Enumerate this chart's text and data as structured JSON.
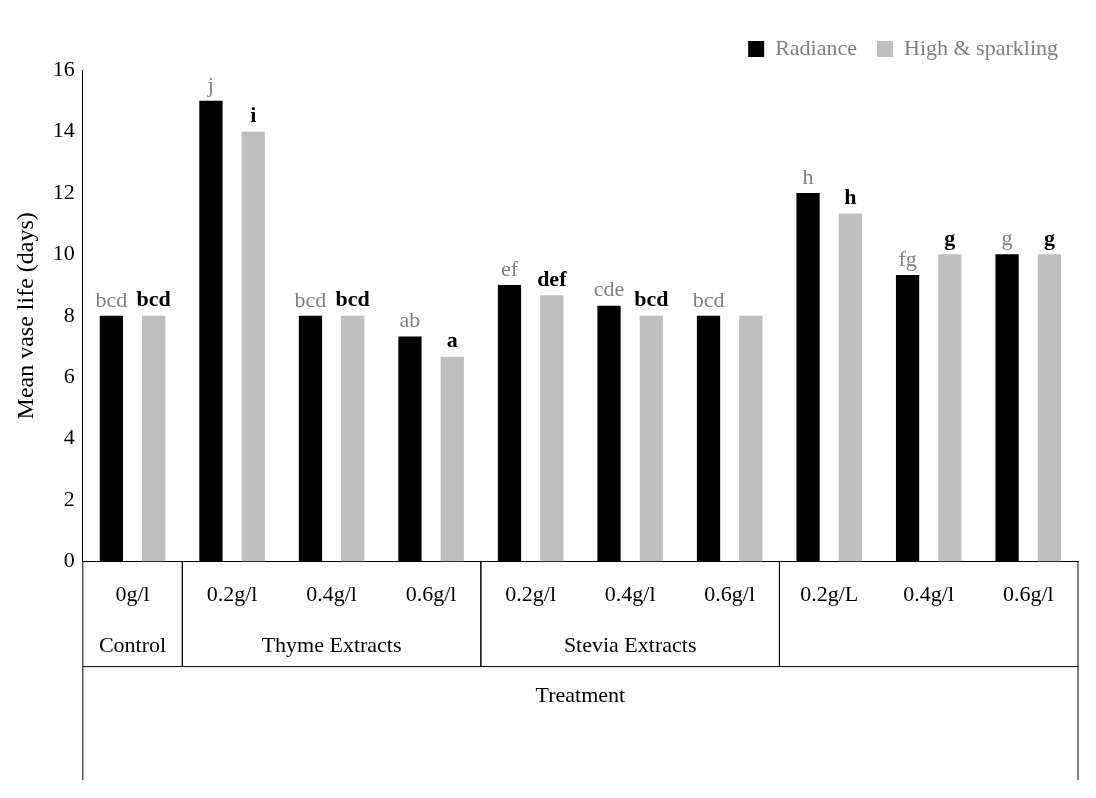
{
  "chart_data": {
    "type": "bar",
    "ylabel": "Mean vase life (days)",
    "xlabel": "Treatment",
    "categories": [
      "0g/l",
      "0.2g/l",
      "0.4g/l",
      "0.6g/l",
      "0.2g/l",
      "0.4g/l",
      "0.6g/l",
      "0.2g/L",
      "0.4g/l",
      "0.6g/l"
    ],
    "series": [
      {
        "name": "Radiance",
        "color": "#000000",
        "values": [
          8,
          15,
          8,
          7.33,
          9,
          8.33,
          8,
          12,
          9.33,
          10
        ],
        "value_labels": [
          "bcd",
          "j",
          "bcd",
          "ab",
          "ef",
          "cde",
          "bcd",
          "h",
          "fg",
          "g"
        ]
      },
      {
        "name": "High & sparkling",
        "color": "#bfbfbf",
        "values": [
          8,
          14,
          8,
          6.67,
          8.67,
          8,
          8,
          11.33,
          10,
          10
        ],
        "value_labels": [
          "bcd",
          "i",
          "bcd",
          "a",
          "def",
          "bcd",
          null,
          "h",
          "g",
          "g"
        ]
      }
    ],
    "annotations": [
      "Control",
      "Thyme Extracts",
      "Stevia Extracts"
    ],
    "ylim": [
      0,
      16
    ],
    "yticks": [
      0,
      2,
      4,
      6,
      8,
      10,
      12,
      14,
      16
    ],
    "grid": false,
    "legend": "top right"
  }
}
